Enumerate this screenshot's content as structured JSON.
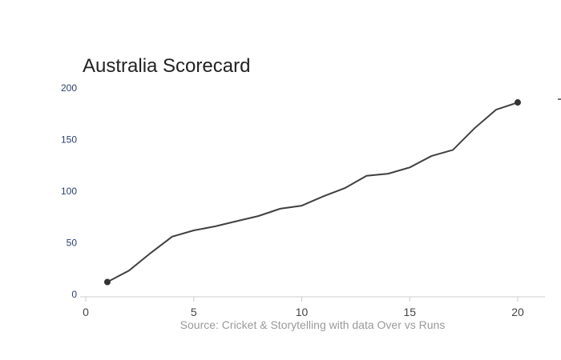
{
  "chart_data": {
    "type": "line",
    "title": "Australia Scorecard",
    "source": "Source: Cricket & Storytelling with data Over vs Runs",
    "xlabel": "",
    "ylabel": "",
    "xlim": [
      0,
      21
    ],
    "ylim": [
      0,
      200
    ],
    "xticks": [
      0,
      5,
      10,
      15,
      20
    ],
    "yticks": [
      0,
      50,
      100,
      150,
      200
    ],
    "grid": false,
    "line_color": "#404040",
    "series": [
      {
        "x": [
          1,
          2,
          3,
          4,
          5,
          6,
          7,
          8,
          9,
          10,
          11,
          12,
          13,
          14,
          15,
          16,
          17,
          18,
          19,
          20
        ],
        "y": [
          12,
          23,
          40,
          56,
          62,
          66,
          71,
          76,
          83,
          86,
          95,
          103,
          115,
          117,
          123,
          134,
          140,
          161,
          179,
          186
        ]
      }
    ]
  }
}
